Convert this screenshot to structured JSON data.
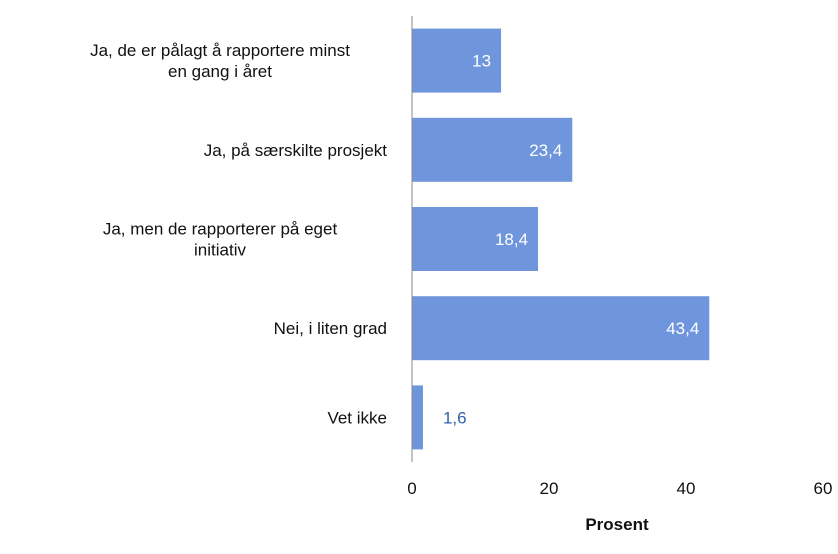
{
  "chart_data": {
    "type": "bar",
    "orientation": "horizontal",
    "categories": [
      [
        "Ja, de er pålagt å rapportere minst",
        "en gang i året"
      ],
      [
        "Ja, på særskilte prosjekt"
      ],
      [
        "Ja, men de rapporterer på eget",
        "initiativ"
      ],
      [
        "Nei, i liten grad"
      ],
      [
        "Vet ikke"
      ]
    ],
    "values": [
      13,
      23.4,
      18.4,
      43.4,
      1.6
    ],
    "data_labels": [
      "13",
      "23,4",
      "18,4",
      "43,4",
      "1,6"
    ],
    "xlim": [
      0,
      60
    ],
    "xticks": [
      "0",
      "20",
      "40",
      "60"
    ],
    "xlabel": "Prosent",
    "ylabel": "",
    "title": "",
    "grid": false,
    "legend": "none",
    "colors": {
      "bar": "#6f96dc",
      "label_inside": "#ffffff",
      "label_outside": "#2f5fa8",
      "axis": "#888888"
    }
  }
}
